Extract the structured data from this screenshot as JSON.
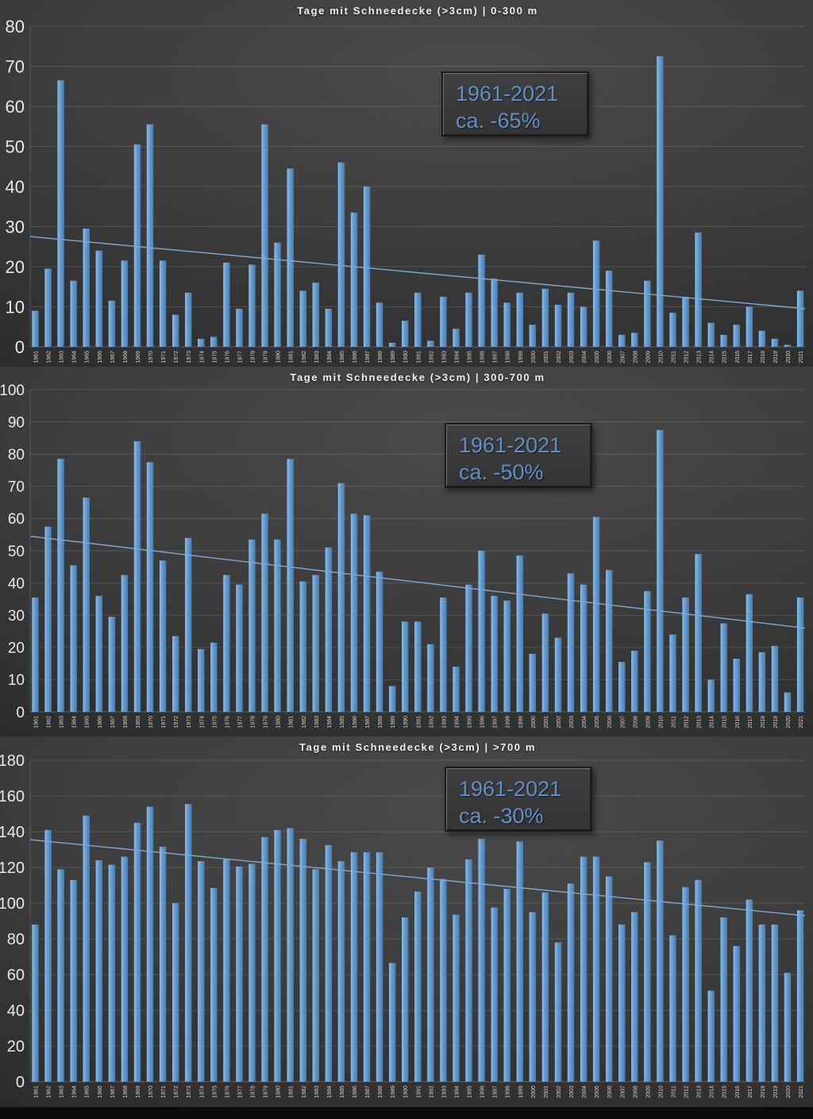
{
  "page": {
    "background": "#3e3e3e",
    "footer_color": "#0b0b0b"
  },
  "colors": {
    "bar_fill_light": "#8fbde8",
    "bar_fill": "#66a0d6",
    "bar_fill_dark": "#4a7cab",
    "trend_line": "#7fa9d2",
    "annotation_text": "#6090c6",
    "axis_text": "#e8e8e8",
    "tick_text": "#d2d2d2",
    "grid_line": "rgba(255,255,255,0.13)",
    "zero_line": "rgba(205,175,140,0.35)"
  },
  "chart_data": [
    {
      "type": "bar",
      "title": "Tage mit Schneedecke (>3cm) | 0-300 m",
      "annotation": {
        "period": "1961-2021",
        "change": "ca. -65%"
      },
      "xlabel": "",
      "ylabel": "",
      "ylim": [
        0,
        80
      ],
      "ytick_step": 10,
      "grid": true,
      "legend_position": "none",
      "trendline": {
        "start": 27.5,
        "end": 9.5
      },
      "categories": [
        1961,
        1962,
        1963,
        1964,
        1965,
        1966,
        1967,
        1968,
        1969,
        1970,
        1971,
        1972,
        1973,
        1974,
        1975,
        1976,
        1977,
        1978,
        1979,
        1980,
        1981,
        1982,
        1983,
        1984,
        1985,
        1986,
        1987,
        1988,
        1989,
        1990,
        1991,
        1992,
        1993,
        1994,
        1995,
        1996,
        1997,
        1998,
        1999,
        2000,
        2001,
        2002,
        2003,
        2004,
        2005,
        2006,
        2007,
        2008,
        2009,
        2010,
        2011,
        2012,
        2013,
        2014,
        2015,
        2016,
        2017,
        2018,
        2019,
        2020,
        2021
      ],
      "values": [
        9,
        19.5,
        66.5,
        16.5,
        29.5,
        24,
        11.5,
        21.5,
        50.5,
        55.5,
        21.5,
        8,
        13.5,
        2,
        2.5,
        21,
        9.5,
        20.5,
        55.5,
        26,
        44.5,
        14,
        16,
        9.5,
        46,
        33.5,
        40,
        11,
        1,
        6.5,
        13.5,
        1.5,
        12.5,
        4.5,
        13.5,
        23,
        17,
        11,
        13.5,
        5.5,
        14.5,
        10.5,
        13.5,
        10,
        26.5,
        19,
        3,
        3.5,
        16.5,
        72.5,
        8.5,
        12.5,
        28.5,
        6,
        3,
        5.5,
        10,
        4,
        2,
        0.5,
        14
      ]
    },
    {
      "type": "bar",
      "title": "Tage mit Schneedecke (>3cm) | 300-700 m",
      "annotation": {
        "period": "1961-2021",
        "change": "ca. -50%"
      },
      "xlabel": "",
      "ylabel": "",
      "ylim": [
        0,
        100
      ],
      "ytick_step": 10,
      "grid": true,
      "legend_position": "none",
      "trendline": {
        "start": 54.5,
        "end": 26
      },
      "categories": [
        1961,
        1962,
        1963,
        1964,
        1965,
        1966,
        1967,
        1968,
        1969,
        1970,
        1971,
        1972,
        1973,
        1974,
        1975,
        1976,
        1977,
        1978,
        1979,
        1980,
        1981,
        1982,
        1983,
        1984,
        1985,
        1986,
        1987,
        1988,
        1989,
        1990,
        1991,
        1992,
        1993,
        1994,
        1995,
        1996,
        1997,
        1998,
        1999,
        2000,
        2001,
        2002,
        2003,
        2004,
        2005,
        2006,
        2007,
        2008,
        2009,
        2010,
        2011,
        2012,
        2013,
        2014,
        2015,
        2016,
        2017,
        2018,
        2019,
        2020,
        2021
      ],
      "values": [
        35.5,
        57.5,
        78.5,
        45.5,
        66.5,
        36,
        29.5,
        42.5,
        84,
        77.5,
        47,
        23.5,
        54,
        19.5,
        21.5,
        42.5,
        39.5,
        53.5,
        61.5,
        53.5,
        78.5,
        40.5,
        42.5,
        51,
        71,
        61.5,
        61,
        43.5,
        8,
        28,
        28,
        21,
        35.5,
        14,
        39.5,
        50,
        36,
        34.5,
        48.5,
        18,
        30.5,
        23,
        43,
        39.5,
        60.5,
        44,
        15.5,
        19,
        37.5,
        87.5,
        24,
        35.5,
        49,
        10,
        27.5,
        16.5,
        36.5,
        18.5,
        20.5,
        6,
        35.5
      ]
    },
    {
      "type": "bar",
      "title": "Tage mit Schneedecke (>3cm) | >700 m",
      "annotation": {
        "period": "1961-2021",
        "change": "ca. -30%"
      },
      "xlabel": "",
      "ylabel": "",
      "ylim": [
        0,
        180
      ],
      "ytick_step": 20,
      "grid": true,
      "legend_position": "none",
      "trendline": {
        "start": 135.5,
        "end": 93
      },
      "categories": [
        1961,
        1962,
        1963,
        1964,
        1965,
        1966,
        1967,
        1968,
        1969,
        1970,
        1971,
        1972,
        1973,
        1974,
        1975,
        1976,
        1977,
        1978,
        1979,
        1980,
        1981,
        1982,
        1983,
        1984,
        1985,
        1986,
        1987,
        1988,
        1989,
        1990,
        1991,
        1992,
        1993,
        1994,
        1995,
        1996,
        1997,
        1998,
        1999,
        2000,
        2001,
        2002,
        2003,
        2004,
        2005,
        2006,
        2007,
        2008,
        2009,
        2010,
        2011,
        2012,
        2013,
        2014,
        2015,
        2016,
        2017,
        2018,
        2019,
        2020,
        2021
      ],
      "values": [
        88,
        141,
        119,
        113,
        149,
        124,
        121.5,
        126,
        145,
        154,
        131.5,
        100,
        155.5,
        123.5,
        108.5,
        124.5,
        120.5,
        122,
        137,
        141,
        142,
        136,
        119,
        132.5,
        123.5,
        128.5,
        128.5,
        128.5,
        66.5,
        92,
        106.5,
        120,
        113.5,
        93.5,
        124.5,
        136,
        97.5,
        108,
        134.5,
        95,
        106,
        78,
        111,
        126,
        126,
        115,
        88,
        95,
        123,
        135,
        82,
        109,
        113,
        51,
        92,
        76,
        102,
        88,
        88,
        61,
        96
      ]
    }
  ]
}
